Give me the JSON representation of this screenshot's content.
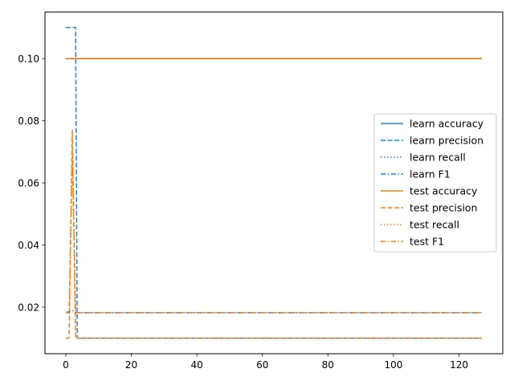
{
  "chart_data": {
    "type": "line",
    "title": "",
    "xlabel": "",
    "ylabel": "",
    "xlim": [
      -6.35,
      133.35
    ],
    "ylim": [
      0.005,
      0.115
    ],
    "xticks": [
      0,
      20,
      40,
      60,
      80,
      100,
      120
    ],
    "yticks": [
      0.02,
      0.04,
      0.06,
      0.08,
      0.1
    ],
    "xtick_labels": [
      "0",
      "20",
      "40",
      "60",
      "80",
      "100",
      "120"
    ],
    "ytick_labels": [
      "0.02",
      "0.04",
      "0.06",
      "0.08",
      "0.10"
    ],
    "grid": false,
    "legend_position": "center-right",
    "colors": {
      "learn": "#1f84e6",
      "test": "#ff7f0e"
    },
    "series": [
      {
        "name": "learn accuracy",
        "group": "learn",
        "style": "solid",
        "points": [
          [
            0,
            0.1
          ],
          [
            127,
            0.1
          ]
        ]
      },
      {
        "name": "learn precision",
        "group": "learn",
        "style": "dashed",
        "points": [
          [
            0,
            0.11
          ],
          [
            3,
            0.11
          ],
          [
            3,
            0.11
          ],
          [
            3.5,
            0.01
          ],
          [
            127,
            0.01
          ]
        ]
      },
      {
        "name": "learn recall",
        "group": "learn",
        "style": "dotted",
        "points": [
          [
            0,
            0.1
          ],
          [
            127,
            0.1
          ]
        ]
      },
      {
        "name": "learn F1",
        "group": "learn",
        "style": "dashdot",
        "points": [
          [
            0,
            0.0182
          ],
          [
            2,
            0.019
          ],
          [
            3,
            0.0182
          ],
          [
            127,
            0.0182
          ]
        ]
      },
      {
        "name": "test accuracy",
        "group": "test",
        "style": "solid",
        "points": [
          [
            0,
            0.1
          ],
          [
            127,
            0.1
          ]
        ]
      },
      {
        "name": "test precision",
        "group": "test",
        "style": "dashed",
        "points": [
          [
            0,
            0.01
          ],
          [
            1,
            0.01
          ],
          [
            2,
            0.077
          ],
          [
            3,
            0.01
          ],
          [
            127,
            0.01
          ]
        ]
      },
      {
        "name": "test recall",
        "group": "test",
        "style": "dotted",
        "points": [
          [
            0,
            0.1
          ],
          [
            127,
            0.1
          ]
        ]
      },
      {
        "name": "test F1",
        "group": "test",
        "style": "dashdot",
        "points": [
          [
            0,
            0.0182
          ],
          [
            1,
            0.0182
          ],
          [
            2,
            0.07
          ],
          [
            3,
            0.0182
          ],
          [
            127,
            0.0182
          ]
        ]
      }
    ]
  }
}
